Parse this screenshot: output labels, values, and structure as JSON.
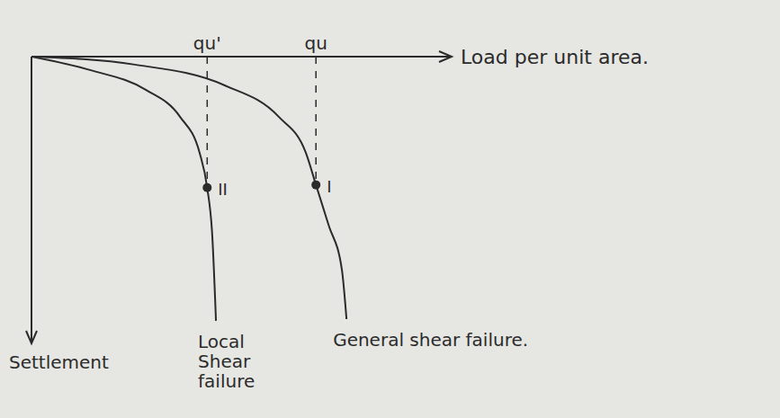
{
  "chart_data": {
    "type": "line",
    "x_label": "Load per unit area.",
    "y_label": "Settlement",
    "xlim": [
      0,
      100
    ],
    "ylim": [
      0,
      100
    ],
    "xticks": [
      {
        "value": 42,
        "label": "qu'"
      },
      {
        "value": 68,
        "label": "qu"
      }
    ],
    "tick_labels": "x",
    "grid": false,
    "series": [
      {
        "name": "Local Shear failure",
        "color": "#2b2b2b",
        "x": [
          0,
          14,
          27.4,
          35.5,
          40.2,
          42,
          43.2,
          44.1
        ],
        "values": [
          0,
          4.7,
          11.7,
          21.1,
          33.8,
          46,
          62.5,
          92.7
        ]
      },
      {
        "name": "General shear failure.",
        "color": "#2b2b2b",
        "x": [
          0,
          24.7,
          46.2,
          59.1,
          65.6,
          68,
          71,
          74.2,
          75.3
        ],
        "values": [
          0,
          2.8,
          10.1,
          21.1,
          33.8,
          45,
          59,
          74.8,
          92.1
        ]
      }
    ],
    "annotations": [
      {
        "x": 42,
        "y": 46,
        "text": "II"
      },
      {
        "x": 68,
        "y": 45,
        "text": "I"
      }
    ]
  }
}
